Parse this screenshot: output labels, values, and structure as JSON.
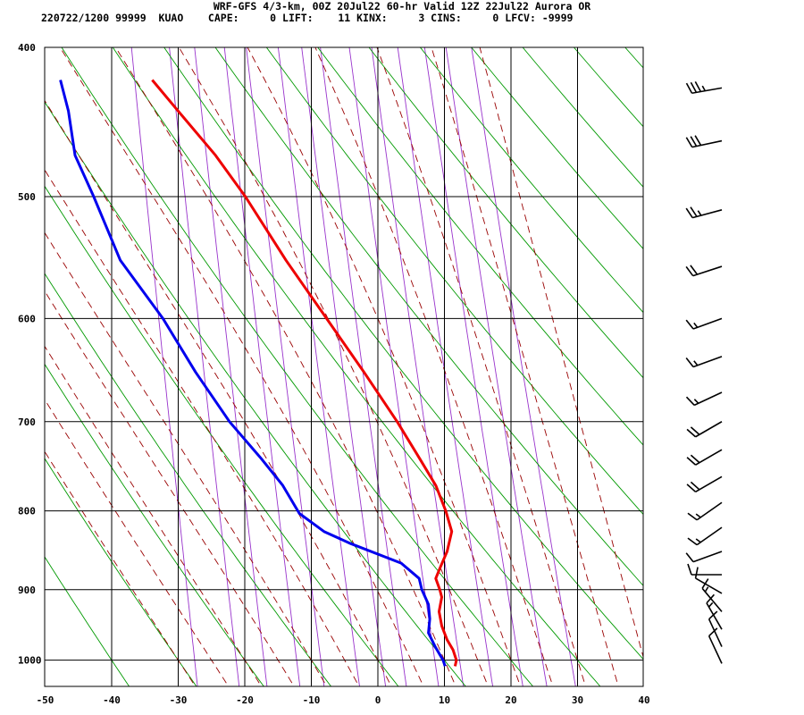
{
  "header": {
    "line1": "WRF-GFS 4/3-km, 00Z 20Jul22 60-hr Valid 12Z 22Jul22 Aurora OR",
    "line2": "220722/1200 99999  KUAO    CAPE:     0 LIFT:    11 KINX:     3 CINS:     0 LFCV: -9999"
  },
  "chart_data": {
    "type": "line",
    "subtype": "skew-t log-p sounding",
    "xlabel": "",
    "ylabel": "",
    "xlim": [
      -50,
      40
    ],
    "ylim_hPa": [
      1040,
      400
    ],
    "x_ticks": [
      "-50",
      "-40",
      "-30",
      "-20",
      "-10",
      "0",
      "10",
      "20",
      "30",
      "40"
    ],
    "y_ticks": [
      "400",
      "500",
      "600",
      "700",
      "800",
      "900",
      "1000"
    ],
    "y_scale": "log pressure",
    "x_skewed": true,
    "grid": true,
    "series": [
      {
        "color": "#ee0000",
        "points_p_T": [
          [
            1009,
            11.6
          ],
          [
            1000,
            11.8
          ],
          [
            985,
            11.3
          ],
          [
            970,
            10.4
          ],
          [
            950,
            9.6
          ],
          [
            930,
            9.2
          ],
          [
            910,
            9.6
          ],
          [
            900,
            9.3
          ],
          [
            885,
            8.7
          ],
          [
            870,
            9.4
          ],
          [
            850,
            10.4
          ],
          [
            825,
            11.1
          ],
          [
            800,
            10.2
          ],
          [
            770,
            8.7
          ],
          [
            740,
            6.3
          ],
          [
            700,
            2.9
          ],
          [
            650,
            -2.1
          ],
          [
            600,
            -7.7
          ],
          [
            550,
            -13.8
          ],
          [
            500,
            -19.9
          ],
          [
            470,
            -24.4
          ],
          [
            440,
            -30.0
          ],
          [
            420,
            -33.9
          ]
        ]
      },
      {
        "color": "#0000ee",
        "points_p_Td": [
          [
            1009,
            10.1
          ],
          [
            1000,
            9.8
          ],
          [
            980,
            8.6
          ],
          [
            960,
            7.6
          ],
          [
            940,
            7.8
          ],
          [
            920,
            7.6
          ],
          [
            900,
            6.6
          ],
          [
            885,
            6.2
          ],
          [
            865,
            3.5
          ],
          [
            840,
            -4.1
          ],
          [
            825,
            -8.1
          ],
          [
            803,
            -11.8
          ],
          [
            770,
            -14.3
          ],
          [
            740,
            -17.5
          ],
          [
            700,
            -22.3
          ],
          [
            650,
            -27.4
          ],
          [
            600,
            -32.3
          ],
          [
            550,
            -38.7
          ],
          [
            500,
            -42.7
          ],
          [
            470,
            -45.5
          ],
          [
            440,
            -46.5
          ],
          [
            420,
            -47.7
          ]
        ]
      }
    ],
    "wind_barbs": [
      {
        "p": 425,
        "dir": 260,
        "spd": 35
      },
      {
        "p": 460,
        "dir": 258,
        "spd": 30
      },
      {
        "p": 510,
        "dir": 255,
        "spd": 25
      },
      {
        "p": 555,
        "dir": 252,
        "spd": 20
      },
      {
        "p": 600,
        "dir": 250,
        "spd": 15
      },
      {
        "p": 635,
        "dir": 250,
        "spd": 15
      },
      {
        "p": 670,
        "dir": 245,
        "spd": 15
      },
      {
        "p": 700,
        "dir": 240,
        "spd": 20
      },
      {
        "p": 730,
        "dir": 240,
        "spd": 20
      },
      {
        "p": 760,
        "dir": 240,
        "spd": 20
      },
      {
        "p": 790,
        "dir": 235,
        "spd": 15
      },
      {
        "p": 820,
        "dir": 235,
        "spd": 15
      },
      {
        "p": 850,
        "dir": 250,
        "spd": 10
      },
      {
        "p": 880,
        "dir": 270,
        "spd": 10
      },
      {
        "p": 905,
        "dir": 300,
        "spd": 10
      },
      {
        "p": 930,
        "dir": 320,
        "spd": 15
      },
      {
        "p": 955,
        "dir": 330,
        "spd": 15
      },
      {
        "p": 980,
        "dir": 335,
        "spd": 10
      },
      {
        "p": 1005,
        "dir": 335,
        "spd": 10
      }
    ],
    "colors": {
      "dry_adiabat": "#009900",
      "moist_adiabat": "#990000",
      "mixing_ratio": "#9933cc",
      "grid": "#000000"
    }
  }
}
